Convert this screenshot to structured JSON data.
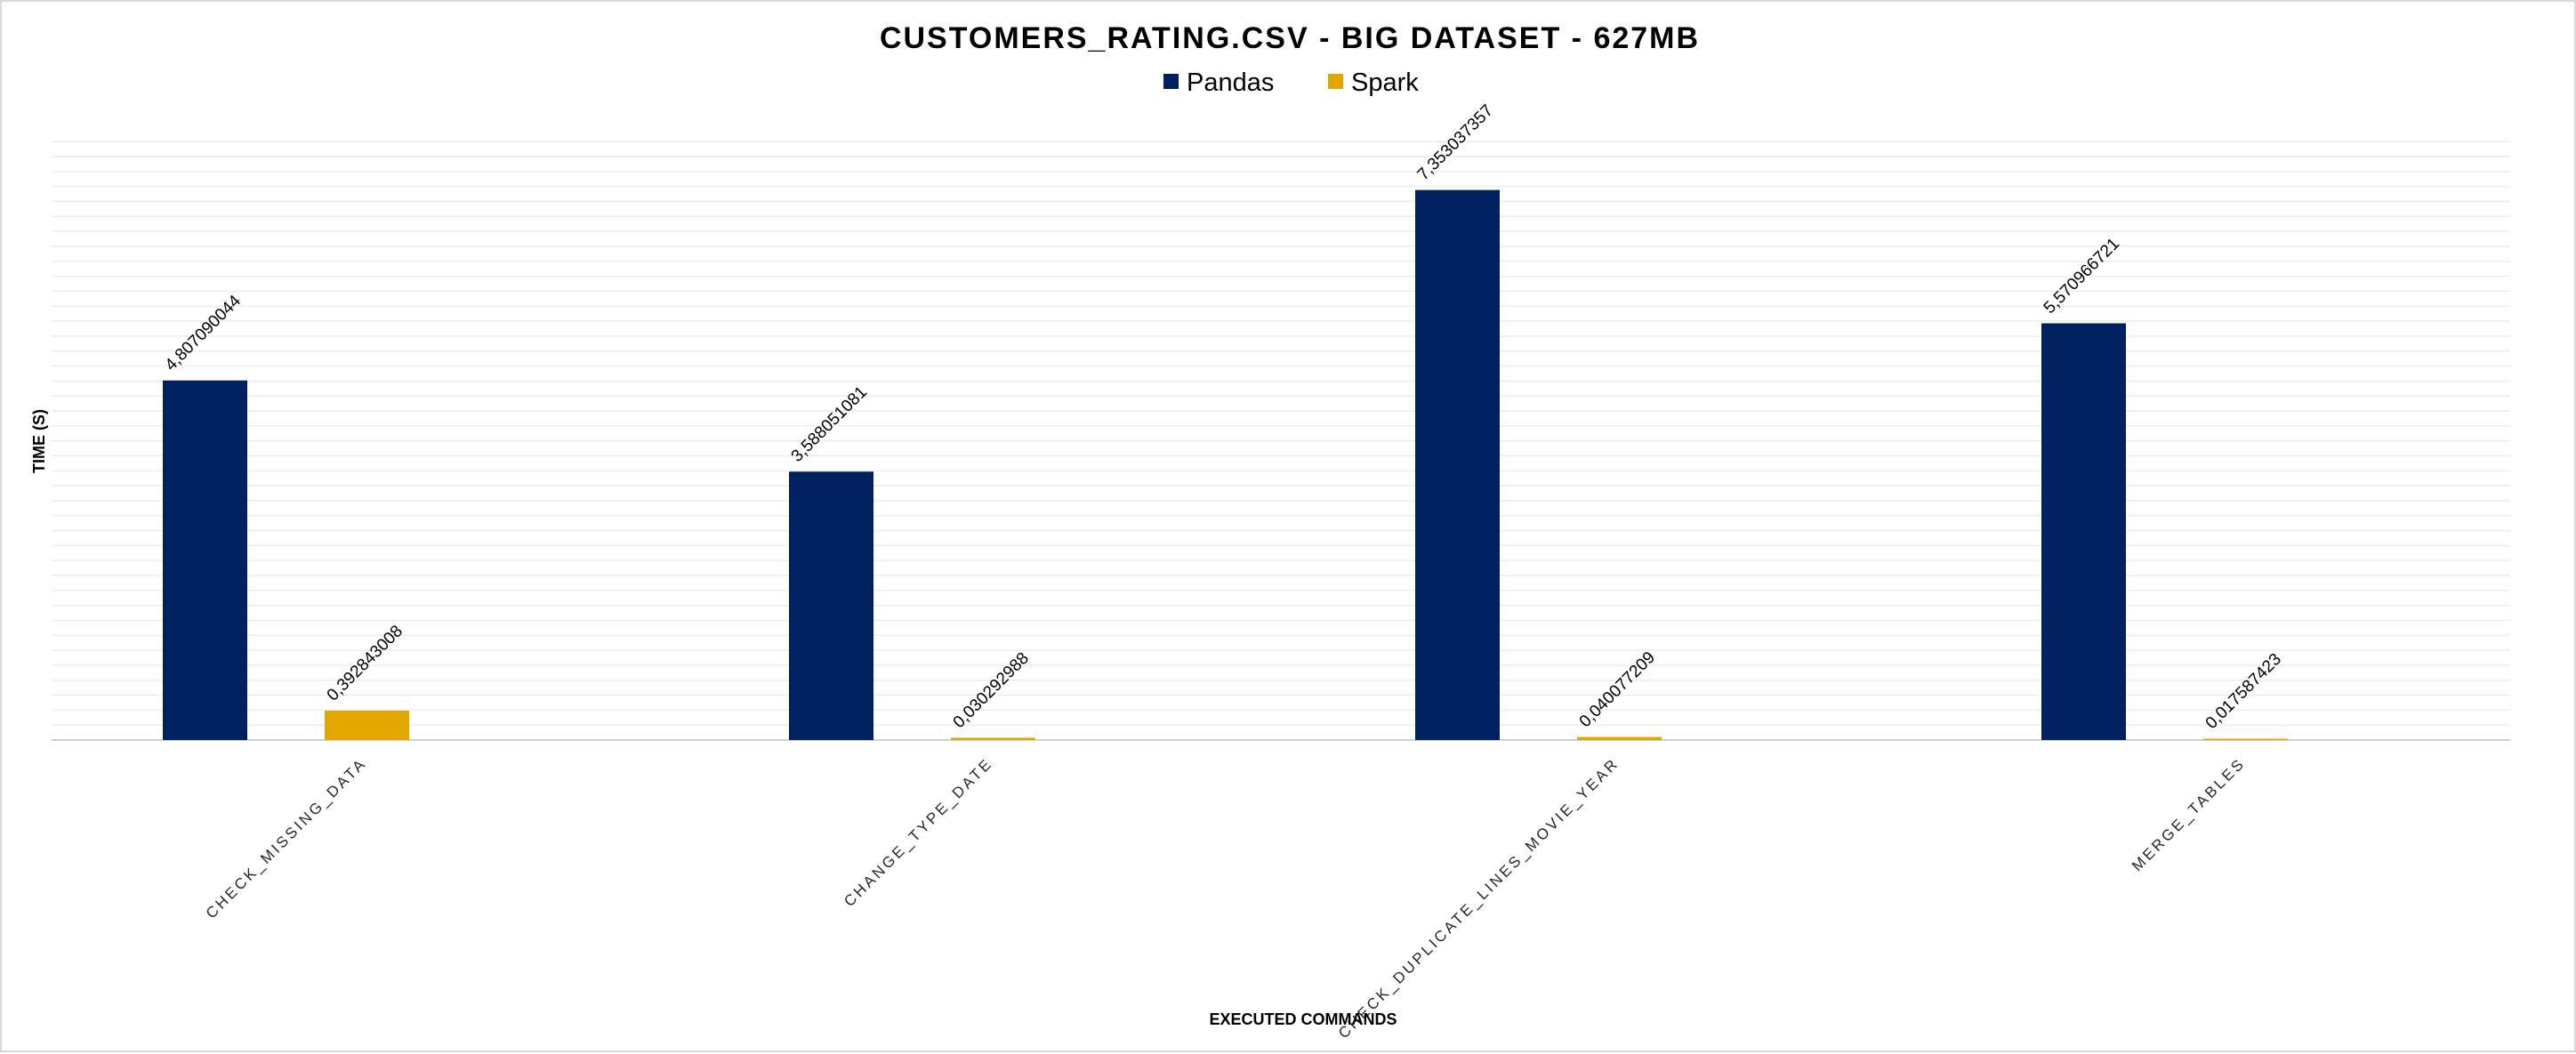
{
  "chart_data": {
    "type": "bar",
    "title": "CUSTOMERS_RATING.CSV - BIG DATASET - 627MB",
    "xlabel": "EXECUTED COMMANDS",
    "ylabel": "TIME (S)",
    "ylim": [
      0,
      8
    ],
    "grid": true,
    "legend_position": "top",
    "categories": [
      "CHECK_MISSING_DATA",
      "CHANGE_TYPE_DATE",
      "CHECK_DUPLICATE_LINES_MOVIE_YEAR",
      "MERGE_TABLES"
    ],
    "series": [
      {
        "name": "Pandas",
        "color": "#002060",
        "values": [
          4.807090044,
          3.588051081,
          7.353037357,
          5.570966721
        ],
        "labels": [
          "4,807090044",
          "3,588051081",
          "7,353037357",
          "5,570966721"
        ]
      },
      {
        "name": "Spark",
        "color": "#e3a600",
        "values": [
          0.392843008,
          0.030292988,
          0.040077209,
          0.017587423
        ],
        "labels": [
          "0,392843008",
          "0,030292988",
          "0,040077209",
          "0,017587423"
        ]
      }
    ]
  }
}
